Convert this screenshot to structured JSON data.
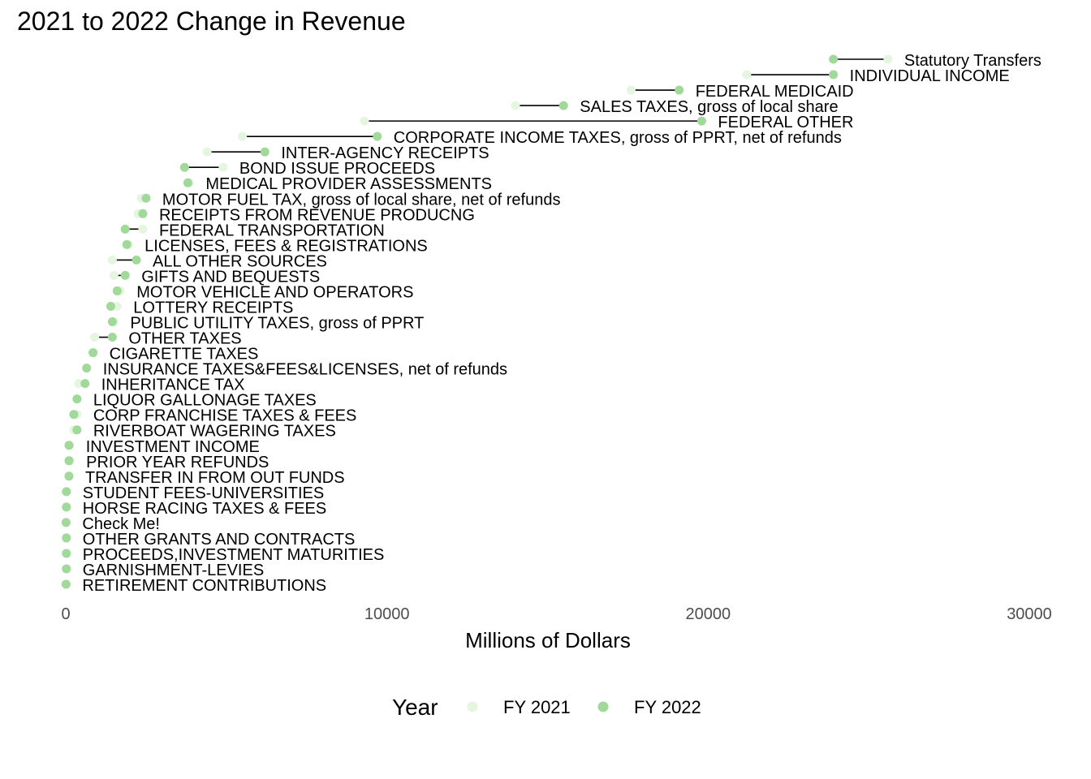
{
  "chart_data": {
    "type": "dumbbell",
    "title": "2021 to 2022 Change in Revenue",
    "xlabel": "Millions of Dollars",
    "ylabel": "",
    "xlim": [
      0,
      30000
    ],
    "x_ticks": [
      0,
      10000,
      20000,
      30000
    ],
    "grid": false,
    "legend": {
      "title": "Year",
      "position": "bottom",
      "entries": [
        "FY 2021",
        "FY 2022"
      ]
    },
    "colors": {
      "FY 2021": "#e5f5e0",
      "FY 2022": "#a1d99b",
      "segment": "#000000"
    },
    "categories": [
      "Statutory  Transfers",
      "INDIVIDUAL INCOME",
      "FEDERAL MEDICAID",
      "SALES TAXES, gross of local share",
      "FEDERAL OTHER",
      "CORPORATE INCOME TAXES, gross of PPRT, net of refunds",
      "INTER-AGENCY RECEIPTS",
      "BOND ISSUE PROCEEDS",
      "MEDICAL PROVIDER ASSESSMENTS",
      "MOTOR FUEL TAX, gross of local share, net of refunds",
      "RECEIPTS FROM REVENUE PRODUCNG",
      "FEDERAL TRANSPORTATION",
      "LICENSES, FEES & REGISTRATIONS",
      "ALL OTHER SOURCES",
      "GIFTS AND BEQUESTS",
      "MOTOR VEHICLE AND OPERATORS",
      "LOTTERY RECEIPTS",
      "PUBLIC UTILITY TAXES, gross of PPRT",
      "OTHER TAXES",
      "CIGARETTE TAXES",
      "INSURANCE TAXES&FEES&LICENSES, net of refunds",
      "INHERITANCE TAX",
      "LIQUOR GALLONAGE TAXES",
      "CORP FRANCHISE TAXES & FEES",
      "RIVERBOAT WAGERING TAXES",
      "INVESTMENT INCOME",
      "PRIOR YEAR REFUNDS",
      "TRANSFER IN FROM OUT FUNDS",
      "STUDENT FEES-UNIVERSITIES",
      "HORSE RACING TAXES & FEES",
      "Check Me!",
      "OTHER GRANTS AND CONTRACTS",
      "PROCEEDS,INVESTMENT MATURITIES",
      "GARNISHMENT-LEVIES",
      "RETIREMENT CONTRIBUTIONS"
    ],
    "series": [
      {
        "name": "FY 2021",
        "values": [
          25600,
          21200,
          17600,
          14000,
          9300,
          5500,
          4400,
          4900,
          3850,
          2350,
          2250,
          2400,
          1950,
          1450,
          1500,
          1700,
          1600,
          1500,
          900,
          850,
          650,
          400,
          350,
          350,
          250,
          120,
          130,
          100,
          20,
          20,
          10,
          20,
          20,
          20,
          10
        ]
      },
      {
        "name": "FY 2022",
        "values": [
          23900,
          23900,
          19100,
          15500,
          19800,
          9700,
          6200,
          3700,
          3800,
          2500,
          2400,
          1850,
          1900,
          2200,
          1850,
          1600,
          1400,
          1450,
          1450,
          850,
          650,
          600,
          350,
          250,
          350,
          100,
          100,
          100,
          20,
          20,
          10,
          20,
          20,
          20,
          10
        ]
      }
    ]
  }
}
